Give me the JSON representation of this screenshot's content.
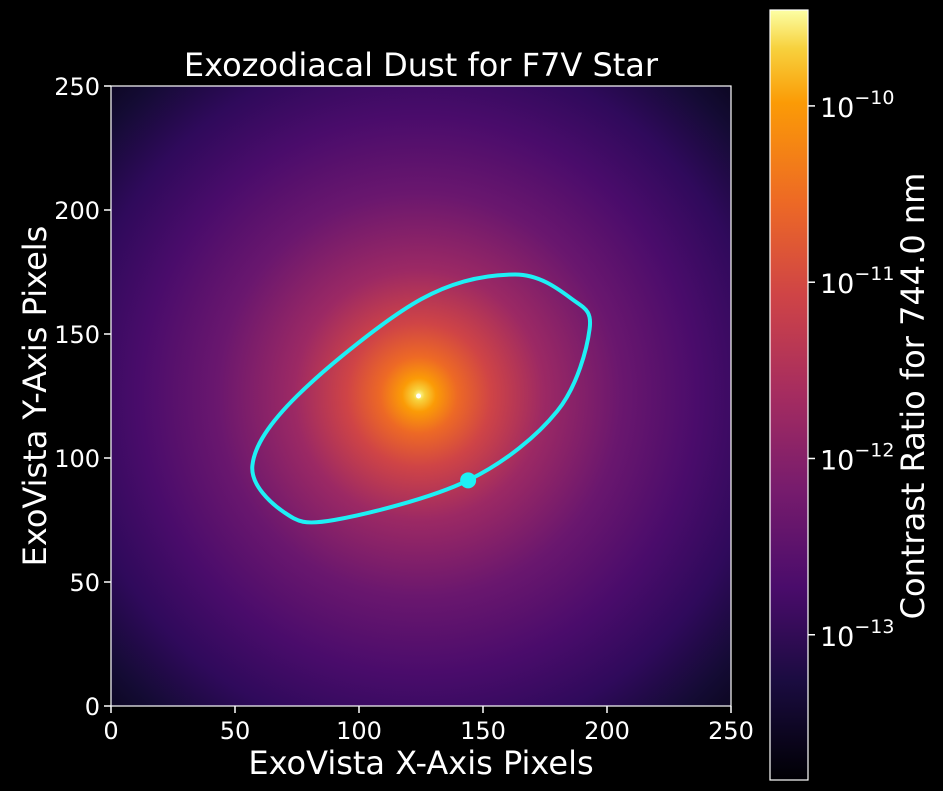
{
  "chart_data": {
    "type": "heatmap",
    "title": "Exozodiacal Dust for F7V Star",
    "xlabel": "ExoVista X-Axis Pixels",
    "ylabel": "ExoVista Y-Axis Pixels",
    "xlim": [
      0,
      250
    ],
    "ylim": [
      0,
      250
    ],
    "xticks": [
      0,
      50,
      100,
      150,
      200,
      250
    ],
    "yticks": [
      0,
      50,
      100,
      150,
      200,
      250
    ],
    "star_center": [
      124,
      125
    ],
    "orbit_ellipse_points": [
      {
        "x": 193,
        "y": 152
      },
      {
        "x": 186,
        "y": 164
      },
      {
        "x": 163,
        "y": 174
      },
      {
        "x": 125,
        "y": 164
      },
      {
        "x": 75,
        "y": 125
      },
      {
        "x": 57,
        "y": 97
      },
      {
        "x": 70,
        "y": 78
      },
      {
        "x": 90,
        "y": 75
      },
      {
        "x": 144,
        "y": 91
      },
      {
        "x": 180,
        "y": 119
      }
    ],
    "planet_position": {
      "x": 144,
      "y": 91
    },
    "colorbar": {
      "label": "Contrast Ratio for 744.0 nm",
      "scale": "log",
      "range": [
        1.5e-14,
        3.5e-10
      ],
      "ticks": [
        {
          "base": "10",
          "exp": "−10",
          "value": 1e-10
        },
        {
          "base": "10",
          "exp": "−11",
          "value": 1e-11
        },
        {
          "base": "10",
          "exp": "−12",
          "value": 1e-12
        },
        {
          "base": "10",
          "exp": "−13",
          "value": 1e-13
        }
      ],
      "colormap": "inferno"
    },
    "colors": {
      "orbit": "#1ef0f5",
      "planet": "#1ef0f5",
      "axes": "#ffffff",
      "background": "#000000"
    }
  }
}
